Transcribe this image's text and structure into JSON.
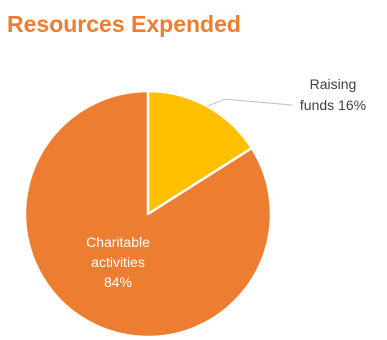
{
  "title": "Resources Expended",
  "colors": {
    "title": "#ed7d31",
    "leader_line": "#bfbfbf",
    "slice_border": "#ffffff"
  },
  "chart_data": {
    "type": "pie",
    "title": "Resources Expended",
    "slices": [
      {
        "label_lines": [
          "Raising",
          "funds 16%"
        ],
        "value": 16,
        "color": "#ffc000",
        "label_color": "#404040"
      },
      {
        "label_lines": [
          "Charitable",
          "activities",
          "84%"
        ],
        "value": 84,
        "color": "#ed7d31",
        "label_color": "#ffffff"
      }
    ],
    "start_angle_deg": 0,
    "direction": "clockwise",
    "legend": "none"
  }
}
